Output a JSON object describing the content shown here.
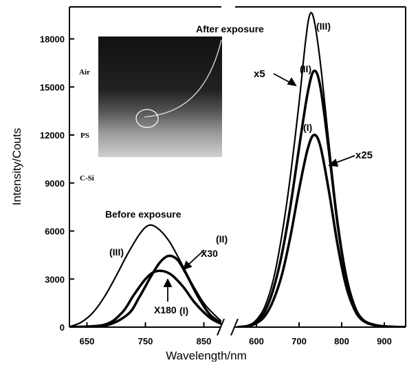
{
  "chart_data": {
    "type": "line",
    "title": "",
    "xlabel": "Wavelength/nm",
    "ylabel": "Intensity/Couts",
    "ylim": [
      0,
      20000
    ],
    "yticks": [
      0,
      3000,
      6000,
      9000,
      12000,
      15000,
      18000
    ],
    "axis_break": true,
    "left_segment": {
      "xlim": [
        620,
        880
      ],
      "xticks": [
        650,
        750,
        850
      ]
    },
    "right_segment": {
      "xlim": [
        550,
        950
      ],
      "xticks": [
        600,
        700,
        800,
        900
      ]
    },
    "grid": false,
    "series": [
      {
        "segment": "left",
        "label": "(III)",
        "points": [
          [
            620,
            20
          ],
          [
            640,
            300
          ],
          [
            660,
            900
          ],
          [
            680,
            1900
          ],
          [
            700,
            3200
          ],
          [
            720,
            4600
          ],
          [
            740,
            5800
          ],
          [
            755,
            6350
          ],
          [
            770,
            6200
          ],
          [
            790,
            5400
          ],
          [
            810,
            4100
          ],
          [
            830,
            2700
          ],
          [
            850,
            1500
          ],
          [
            870,
            700
          ],
          [
            880,
            380
          ]
        ]
      },
      {
        "segment": "left",
        "label": "(II)",
        "multiplier": "X30",
        "points": [
          [
            620,
            0
          ],
          [
            680,
            80
          ],
          [
            720,
            800
          ],
          [
            740,
            1900
          ],
          [
            760,
            3200
          ],
          [
            775,
            4050
          ],
          [
            790,
            4450
          ],
          [
            805,
            4200
          ],
          [
            820,
            3300
          ],
          [
            840,
            1900
          ],
          [
            860,
            800
          ],
          [
            880,
            250
          ]
        ]
      },
      {
        "segment": "left",
        "label": "(I)",
        "multiplier": "X180",
        "points": [
          [
            620,
            0
          ],
          [
            680,
            150
          ],
          [
            710,
            900
          ],
          [
            730,
            2000
          ],
          [
            750,
            3000
          ],
          [
            765,
            3450
          ],
          [
            780,
            3500
          ],
          [
            795,
            3250
          ],
          [
            815,
            2500
          ],
          [
            835,
            1500
          ],
          [
            860,
            600
          ],
          [
            880,
            200
          ]
        ]
      },
      {
        "segment": "right",
        "label": "(III)",
        "points": [
          [
            555,
            0
          ],
          [
            580,
            100
          ],
          [
            600,
            450
          ],
          [
            620,
            1300
          ],
          [
            640,
            3000
          ],
          [
            660,
            5800
          ],
          [
            680,
            9500
          ],
          [
            700,
            14000
          ],
          [
            715,
            17800
          ],
          [
            725,
            19500
          ],
          [
            735,
            19200
          ],
          [
            750,
            16500
          ],
          [
            770,
            11500
          ],
          [
            790,
            6800
          ],
          [
            810,
            3400
          ],
          [
            830,
            1400
          ],
          [
            850,
            500
          ],
          [
            880,
            150
          ],
          [
            920,
            30
          ],
          [
            950,
            10
          ]
        ]
      },
      {
        "segment": "right",
        "label": "(II)",
        "multiplier": "x5",
        "points": [
          [
            555,
            0
          ],
          [
            580,
            80
          ],
          [
            600,
            350
          ],
          [
            620,
            1000
          ],
          [
            640,
            2400
          ],
          [
            660,
            4600
          ],
          [
            680,
            7600
          ],
          [
            700,
            11200
          ],
          [
            720,
            14600
          ],
          [
            735,
            16000
          ],
          [
            750,
            15000
          ],
          [
            770,
            11000
          ],
          [
            790,
            6500
          ],
          [
            810,
            3200
          ],
          [
            830,
            1300
          ],
          [
            850,
            450
          ],
          [
            880,
            120
          ],
          [
            920,
            20
          ],
          [
            950,
            0
          ]
        ]
      },
      {
        "segment": "right",
        "label": "(I)",
        "multiplier": "x25",
        "points": [
          [
            555,
            0
          ],
          [
            580,
            60
          ],
          [
            600,
            250
          ],
          [
            620,
            700
          ],
          [
            640,
            1700
          ],
          [
            660,
            3300
          ],
          [
            680,
            5700
          ],
          [
            700,
            8600
          ],
          [
            720,
            11100
          ],
          [
            735,
            12000
          ],
          [
            750,
            11300
          ],
          [
            770,
            8500
          ],
          [
            790,
            5200
          ],
          [
            810,
            2600
          ],
          [
            830,
            1100
          ],
          [
            850,
            400
          ],
          [
            880,
            100
          ],
          [
            920,
            20
          ],
          [
            950,
            0
          ]
        ]
      }
    ],
    "annotations": [
      {
        "text": "After exposure"
      },
      {
        "text": "Before exposure"
      },
      {
        "text": "(III)",
        "ref": "right-III"
      },
      {
        "text": "(II)",
        "ref": "right-II"
      },
      {
        "text": "(I)",
        "ref": "right-I"
      },
      {
        "text": "x5"
      },
      {
        "text": "x25"
      },
      {
        "text": "(III)",
        "ref": "left-III"
      },
      {
        "text": "(II)",
        "ref": "left-II"
      },
      {
        "text": "X30"
      },
      {
        "text": "X180"
      },
      {
        "text": "(I)",
        "ref": "left-I"
      }
    ],
    "inset_labels": [
      "Air",
      "PS",
      "C-Si"
    ]
  }
}
